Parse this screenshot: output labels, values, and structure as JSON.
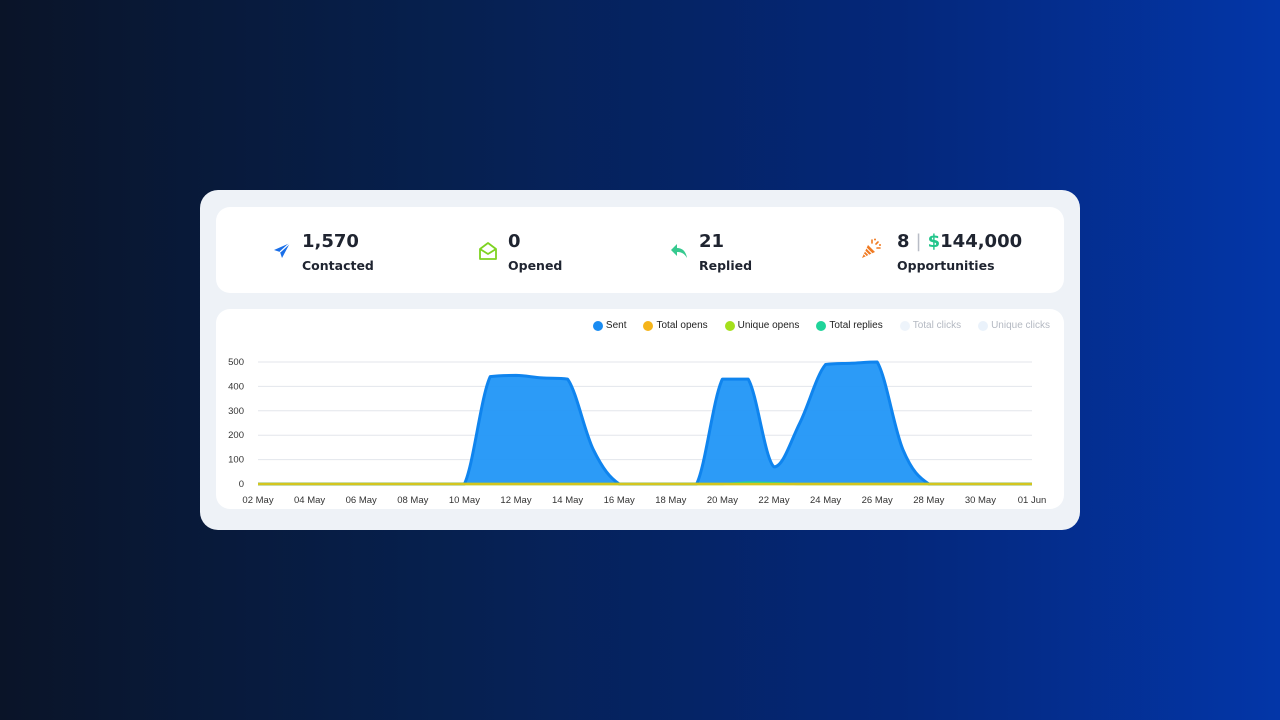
{
  "stats": {
    "contacted": {
      "value": "1,570",
      "label": "Contacted",
      "icon": "paper-plane-icon",
      "color": "#1a6fe8"
    },
    "opened": {
      "value": "0",
      "label": "Opened",
      "icon": "envelope-open-icon",
      "color": "#7ed321"
    },
    "replied": {
      "value": "21",
      "label": "Replied",
      "icon": "reply-icon",
      "color": "#36c98f"
    },
    "opportunities": {
      "count": "8",
      "separator": "|",
      "dollar": "$",
      "amount": "144,000",
      "label": "Opportunities",
      "icon": "party-popper-icon",
      "color": "#f07a22"
    }
  },
  "legend": [
    {
      "name": "Sent",
      "color": "#1a8cf2",
      "active": true
    },
    {
      "name": "Total opens",
      "color": "#f5b41a",
      "active": true
    },
    {
      "name": "Unique opens",
      "color": "#a4e01c",
      "active": true
    },
    {
      "name": "Total replies",
      "color": "#1fd49a",
      "active": true
    },
    {
      "name": "Total clicks",
      "color": "#eef4fb",
      "active": false
    },
    {
      "name": "Unique clicks",
      "color": "#eaf2fb",
      "active": false
    }
  ],
  "chart_data": {
    "type": "area",
    "title": "",
    "xlabel": "",
    "ylabel": "",
    "ylim": [
      0,
      500
    ],
    "yticks": [
      0,
      100,
      200,
      300,
      400,
      500
    ],
    "grid": true,
    "legend_position": "top-right",
    "x": [
      "02 May",
      "03 May",
      "04 May",
      "05 May",
      "06 May",
      "07 May",
      "08 May",
      "09 May",
      "10 May",
      "11 May",
      "12 May",
      "13 May",
      "14 May",
      "15 May",
      "16 May",
      "17 May",
      "18 May",
      "19 May",
      "20 May",
      "21 May",
      "22 May",
      "23 May",
      "24 May",
      "25 May",
      "26 May",
      "27 May",
      "28 May",
      "29 May",
      "30 May",
      "31 May",
      "01 Jun"
    ],
    "xtick_labels": [
      "02 May",
      "04 May",
      "06 May",
      "08 May",
      "10 May",
      "12 May",
      "14 May",
      "16 May",
      "18 May",
      "20 May",
      "22 May",
      "24 May",
      "26 May",
      "28 May",
      "30 May",
      "01 Jun"
    ],
    "series": [
      {
        "name": "Sent",
        "color": "#1a8cf2",
        "values": [
          0,
          0,
          0,
          0,
          0,
          0,
          0,
          0,
          0,
          440,
          445,
          435,
          430,
          140,
          0,
          0,
          0,
          0,
          430,
          430,
          70,
          250,
          490,
          495,
          500,
          140,
          0,
          0,
          0,
          0,
          0
        ]
      },
      {
        "name": "Total opens",
        "color": "#f5b41a",
        "values": [
          0,
          0,
          0,
          0,
          0,
          0,
          0,
          0,
          0,
          0,
          0,
          0,
          0,
          0,
          0,
          0,
          0,
          0,
          0,
          0,
          0,
          0,
          0,
          0,
          0,
          0,
          0,
          0,
          0,
          0,
          0
        ]
      },
      {
        "name": "Unique opens",
        "color": "#a4e01c",
        "values": [
          0,
          0,
          0,
          0,
          0,
          0,
          0,
          0,
          0,
          0,
          0,
          0,
          0,
          0,
          0,
          0,
          0,
          0,
          0,
          0,
          0,
          0,
          0,
          0,
          0,
          0,
          0,
          0,
          0,
          0,
          0
        ]
      },
      {
        "name": "Total replies",
        "color": "#1fd49a",
        "values": [
          0,
          0,
          0,
          0,
          0,
          0,
          0,
          0,
          0,
          0,
          0,
          0,
          0,
          0,
          0,
          0,
          0,
          0,
          0,
          6,
          4,
          0,
          0,
          0,
          0,
          0,
          0,
          0,
          0,
          0,
          0
        ]
      }
    ]
  }
}
